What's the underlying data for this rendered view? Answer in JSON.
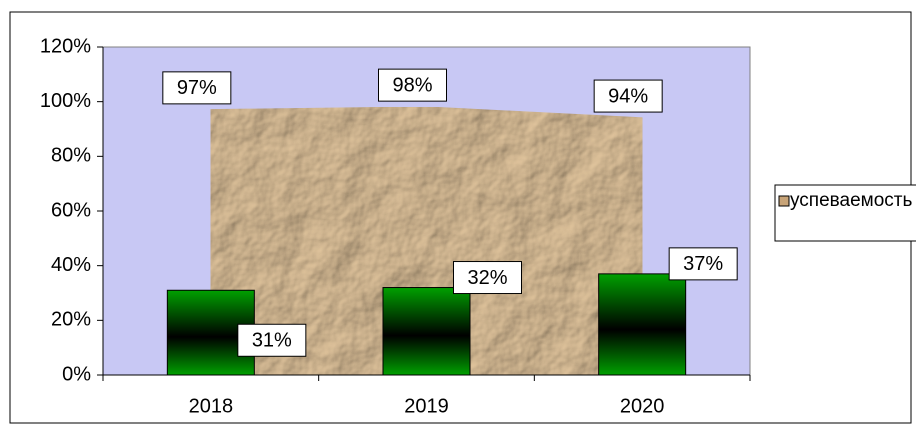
{
  "chart_data": {
    "type": "area_bar",
    "categories": [
      "2018",
      "2019",
      "2020"
    ],
    "series": [
      {
        "name": "успеваемость",
        "type": "area",
        "color": "#c8a478",
        "values": [
          97,
          98,
          94
        ],
        "value_labels": [
          "97%",
          "98%",
          "94%"
        ]
      },
      {
        "type": "bar",
        "color": "#008000",
        "values": [
          31,
          32,
          37
        ],
        "value_labels": [
          "31%",
          "32%",
          "37%"
        ]
      }
    ],
    "ylim": [
      0,
      120
    ],
    "yticks": [
      {
        "value": 0,
        "label": "0%"
      },
      {
        "value": 20,
        "label": "20%"
      },
      {
        "value": 40,
        "label": "40%"
      },
      {
        "value": 60,
        "label": "60%"
      },
      {
        "value": 80,
        "label": "80%"
      },
      {
        "value": 100,
        "label": "100%"
      },
      {
        "value": 120,
        "label": "120%"
      }
    ],
    "plot_background": "#c8c8f4",
    "legend": "right"
  }
}
